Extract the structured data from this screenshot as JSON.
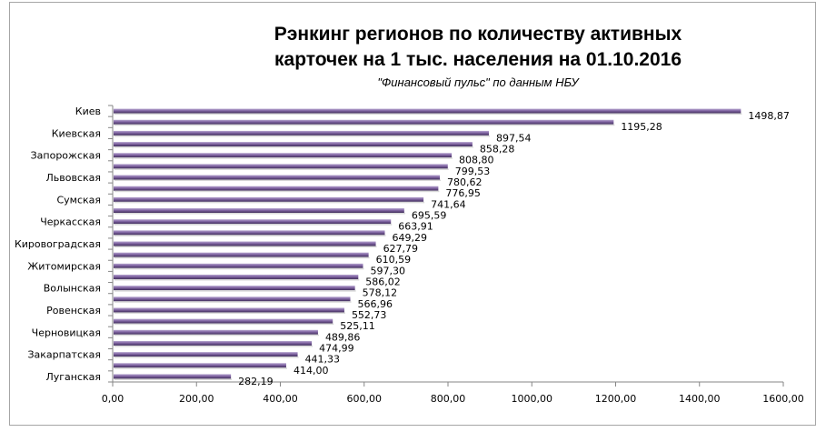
{
  "chart_data": {
    "type": "bar",
    "orientation": "horizontal",
    "title": [
      "Рэнкинг регионов по количеству  активных",
      "карточек на 1 тыс. населения на 01.10.2016"
    ],
    "subtitle": "\"Финансовый пульс\" по данным НБУ",
    "categories": [
      "Киев",
      "",
      "Киевская",
      "",
      "Запорожская",
      "",
      "Львовская",
      "",
      "Сумская",
      "",
      "Черкасская",
      "",
      "Кировоградская",
      "",
      "Житомирская",
      "",
      "Волынская",
      "",
      "Ровенская",
      "",
      "Черновицкая",
      "",
      "Закарпатская",
      "",
      "Луганская"
    ],
    "values": [
      1498.87,
      1195.28,
      897.54,
      858.28,
      808.8,
      799.53,
      780.62,
      776.95,
      741.64,
      695.59,
      663.91,
      649.29,
      627.79,
      610.59,
      597.3,
      586.02,
      578.12,
      566.96,
      552.73,
      525.11,
      489.86,
      474.99,
      441.33,
      414.0,
      282.19
    ],
    "data_labels": [
      "1498,87",
      "1195,28",
      "897,54",
      "858,28",
      "808,80",
      "799,53",
      "780,62",
      "776,95",
      "741,64",
      "695,59",
      "663,91",
      "649,29",
      "627,79",
      "610,59",
      "597,30",
      "586,02",
      "578,12",
      "566,96",
      "552,73",
      "525,11",
      "489,86",
      "474,99",
      "441,33",
      "414,00",
      "282,19"
    ],
    "x_ticks": [
      "0,00",
      "200,00",
      "400,00",
      "600,00",
      "800,00",
      "1000,00",
      "1200,00",
      "1400,00",
      "1600,00"
    ],
    "xlim": [
      0,
      1600
    ],
    "xlabel": "",
    "ylabel": "",
    "grid": false,
    "legend": "none",
    "bar_color": "#8064a2"
  }
}
